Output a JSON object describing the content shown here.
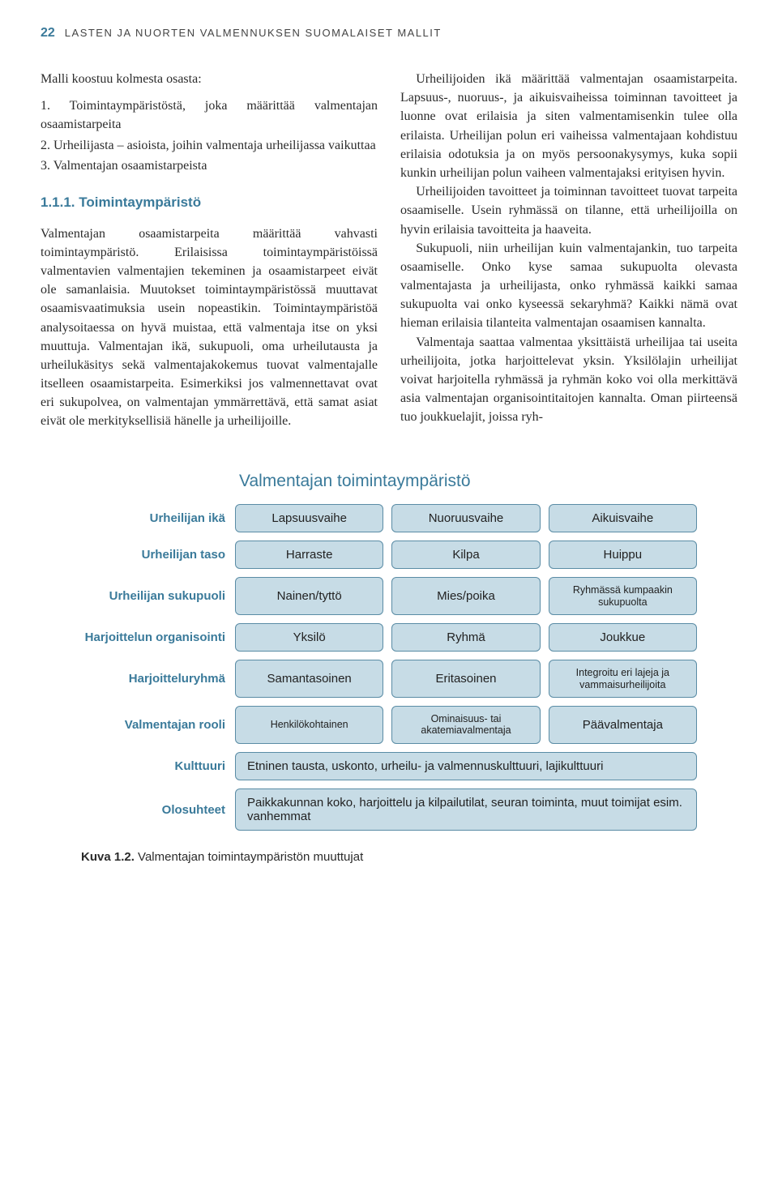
{
  "header": {
    "page_number": "22",
    "running_title": "LASTEN JA NUORTEN VALMENNUKSEN SUOMALAISET MALLIT"
  },
  "left_column": {
    "intro": "Malli koostuu kolmesta osasta:",
    "list": [
      "1. Toimintaympäristöstä, joka määrittää valmentajan osaamistarpeita",
      "2. Urheilijasta – asioista, joihin valmentaja urheilijassa vaikuttaa",
      "3. Valmentajan osaamistarpeista"
    ],
    "section_heading": "1.1.1. Toimintaympäristö",
    "body": "Valmentajan osaamistarpeita määrittää vahvasti toimintaympäristö. Erilaisissa toimintaympäristöissä valmentavien valmentajien tekeminen ja osaamistarpeet eivät ole samanlaisia. Muutokset toimintaympäristössä muuttavat osaamisvaatimuksia usein nopeastikin. Toimintaympäristöä analysoitaessa on hyvä muistaa, että valmentaja itse on yksi muuttuja. Valmentajan ikä, sukupuoli, oma urheilutausta ja urheilukäsitys sekä valmentajakokemus tuovat valmentajalle itselleen osaamistarpeita. Esimerkiksi jos valmennettavat ovat eri sukupolvea, on valmentajan ymmärrettävä, että samat asiat eivät ole merkityksellisiä hänelle ja urheilijoille."
  },
  "right_column": {
    "p1": "Urheilijoiden ikä määrittää valmentajan osaamistarpeita. Lapsuus-, nuoruus-, ja aikuisvaiheissa toiminnan tavoitteet ja luonne ovat erilaisia ja siten valmentamisenkin tulee olla erilaista. Urheilijan polun eri vaiheissa valmentajaan kohdistuu erilaisia odotuksia ja on myös persoonakysymys, kuka sopii kunkin urheilijan polun vaiheen valmentajaksi erityisen hyvin.",
    "p2": "Urheilijoiden tavoitteet ja toiminnan tavoitteet tuovat tarpeita osaamiselle. Usein ryhmässä on tilanne, että urheilijoilla on hyvin erilaisia tavoitteita ja haaveita.",
    "p3": "Sukupuoli, niin urheilijan kuin valmentajankin, tuo tarpeita osaamiselle. Onko kyse samaa sukupuolta olevasta valmentajasta ja urheilijasta, onko ryhmässä kaikki samaa sukupuolta vai onko kyseessä sekaryhmä? Kaikki nämä ovat hieman erilaisia tilanteita valmentajan osaamisen kannalta.",
    "p4": "Valmentaja saattaa valmentaa yksittäistä urheilijaa tai useita urheilijoita, jotka harjoittelevat yksin. Yksilölajin urheilijat voivat harjoitella ryhmässä ja ryhmän koko voi olla merkittävä asia valmentajan organisointitaitojen kannalta. Oman piirteensä tuo joukkuelajit, joissa ryh-"
  },
  "diagram": {
    "title": "Valmentajan toimintaympäristö",
    "box_bg": "#c7dce6",
    "box_border": "#5a8ca5",
    "label_color": "#3a7a9a",
    "rows": [
      {
        "label": "Urheilijan ikä",
        "cells": [
          "Lapsuusvaihe",
          "Nuoruusvaihe",
          "Aikuisvaihe"
        ]
      },
      {
        "label": "Urheilijan taso",
        "cells": [
          "Harraste",
          "Kilpa",
          "Huippu"
        ]
      },
      {
        "label": "Urheilijan sukupuoli",
        "cells": [
          "Nainen/tyttö",
          "Mies/poika",
          "Ryhmässä kumpaakin sukupuolta"
        ],
        "small_last": true
      },
      {
        "label": "Harjoittelun organisointi",
        "cells": [
          "Yksilö",
          "Ryhmä",
          "Joukkue"
        ]
      },
      {
        "label": "Harjoitteluryhmä",
        "cells": [
          "Samantasoinen",
          "Eritasoinen",
          "Integroitu eri lajeja ja vammaisurheilijoita"
        ],
        "small_last": true
      },
      {
        "label": "Valmentajan rooli",
        "cells": [
          "Henkilökohtainen",
          "Ominaisuus- tai akatemiavalmentaja",
          "Päävalmentaja"
        ],
        "small_mid": true,
        "small_first": true
      },
      {
        "label": "Kulttuuri",
        "wide_cell": "Etninen tausta, uskonto, urheilu- ja valmennuskulttuuri, lajikulttuuri"
      },
      {
        "label": "Olosuhteet",
        "wide_cell": "Paikkakunnan koko, harjoittelu ja kilpailutilat, seuran toiminta, muut toimijat esim. vanhemmat"
      }
    ]
  },
  "caption": {
    "label": "Kuva 1.2.",
    "text": "Valmentajan toimintaympäristön muuttujat"
  }
}
